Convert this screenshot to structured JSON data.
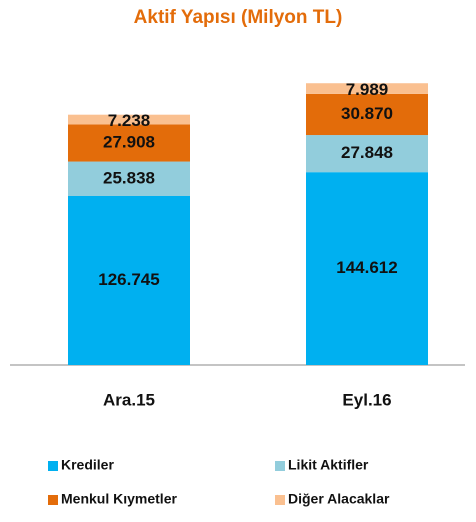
{
  "chart_data": {
    "type": "stacked_bar",
    "title": "Aktif Yapısı (Milyon TL)",
    "categories": [
      "Ara.15",
      "Eyl.16"
    ],
    "series": [
      {
        "name": "Krediler",
        "color": "#00B0F0",
        "values": [
          126745,
          144612
        ],
        "value_labels": [
          "126.745",
          "144.612"
        ]
      },
      {
        "name": "Likit Aktifler",
        "color": "#92CDDC",
        "values": [
          25838,
          27848
        ],
        "value_labels": [
          "25.838",
          "27.848"
        ]
      },
      {
        "name": "Menkul Kıymetler",
        "color": "#E36C0A",
        "values": [
          27908,
          30870
        ],
        "value_labels": [
          "27.908",
          "30.870"
        ]
      },
      {
        "name": "Diğer Alacaklar",
        "color": "#FAC090",
        "values": [
          7238,
          7989
        ],
        "value_labels": [
          "7.238",
          "7.989"
        ]
      }
    ]
  }
}
